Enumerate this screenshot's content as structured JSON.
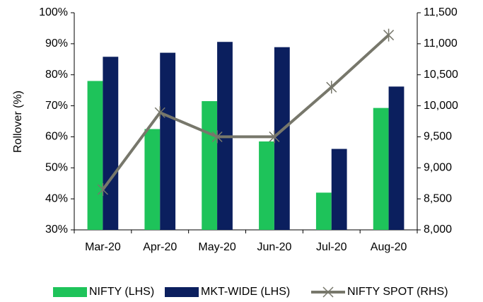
{
  "chart_data": {
    "type": "bar-line",
    "ylabel": "Rollover (%)",
    "categories": [
      "Mar-20",
      "Apr-20",
      "May-20",
      "Jun-20",
      "Jul-20",
      "Aug-20"
    ],
    "series": [
      {
        "name": "NIFTY (LHS)",
        "type": "bar",
        "color": "#1ec35a",
        "values": [
          78,
          62.5,
          71.5,
          58.5,
          42,
          69.3
        ]
      },
      {
        "name": "MKT-WIDE (LHS)",
        "type": "bar",
        "color": "#0b1f5e",
        "values": [
          85.8,
          87.1,
          90.6,
          88.9,
          56.1,
          76.2
        ]
      },
      {
        "name": "NIFTY SPOT (RHS)",
        "type": "line",
        "axis": "y2",
        "color": "#77776b",
        "values": [
          8650,
          9890,
          9500,
          9500,
          10300,
          11140
        ]
      }
    ],
    "ylim": [
      30,
      100
    ],
    "yticks": [
      {
        "value": 30,
        "label": "30%"
      },
      {
        "value": 40,
        "label": "40%"
      },
      {
        "value": 50,
        "label": "50%"
      },
      {
        "value": 60,
        "label": "60%"
      },
      {
        "value": 70,
        "label": "70%"
      },
      {
        "value": 80,
        "label": "80%"
      },
      {
        "value": 90,
        "label": "90%"
      },
      {
        "value": 100,
        "label": "100%"
      }
    ],
    "y2lim": [
      8000,
      11500
    ],
    "y2ticks": [
      {
        "value": 8000,
        "label": "8,000"
      },
      {
        "value": 8500,
        "label": "8,500"
      },
      {
        "value": 9000,
        "label": "9,000"
      },
      {
        "value": 9500,
        "label": "9,500"
      },
      {
        "value": 10000,
        "label": "10,000"
      },
      {
        "value": 10500,
        "label": "10,500"
      },
      {
        "value": 11000,
        "label": "11,000"
      },
      {
        "value": 11500,
        "label": "11,500"
      }
    ],
    "legend": "bottom"
  }
}
